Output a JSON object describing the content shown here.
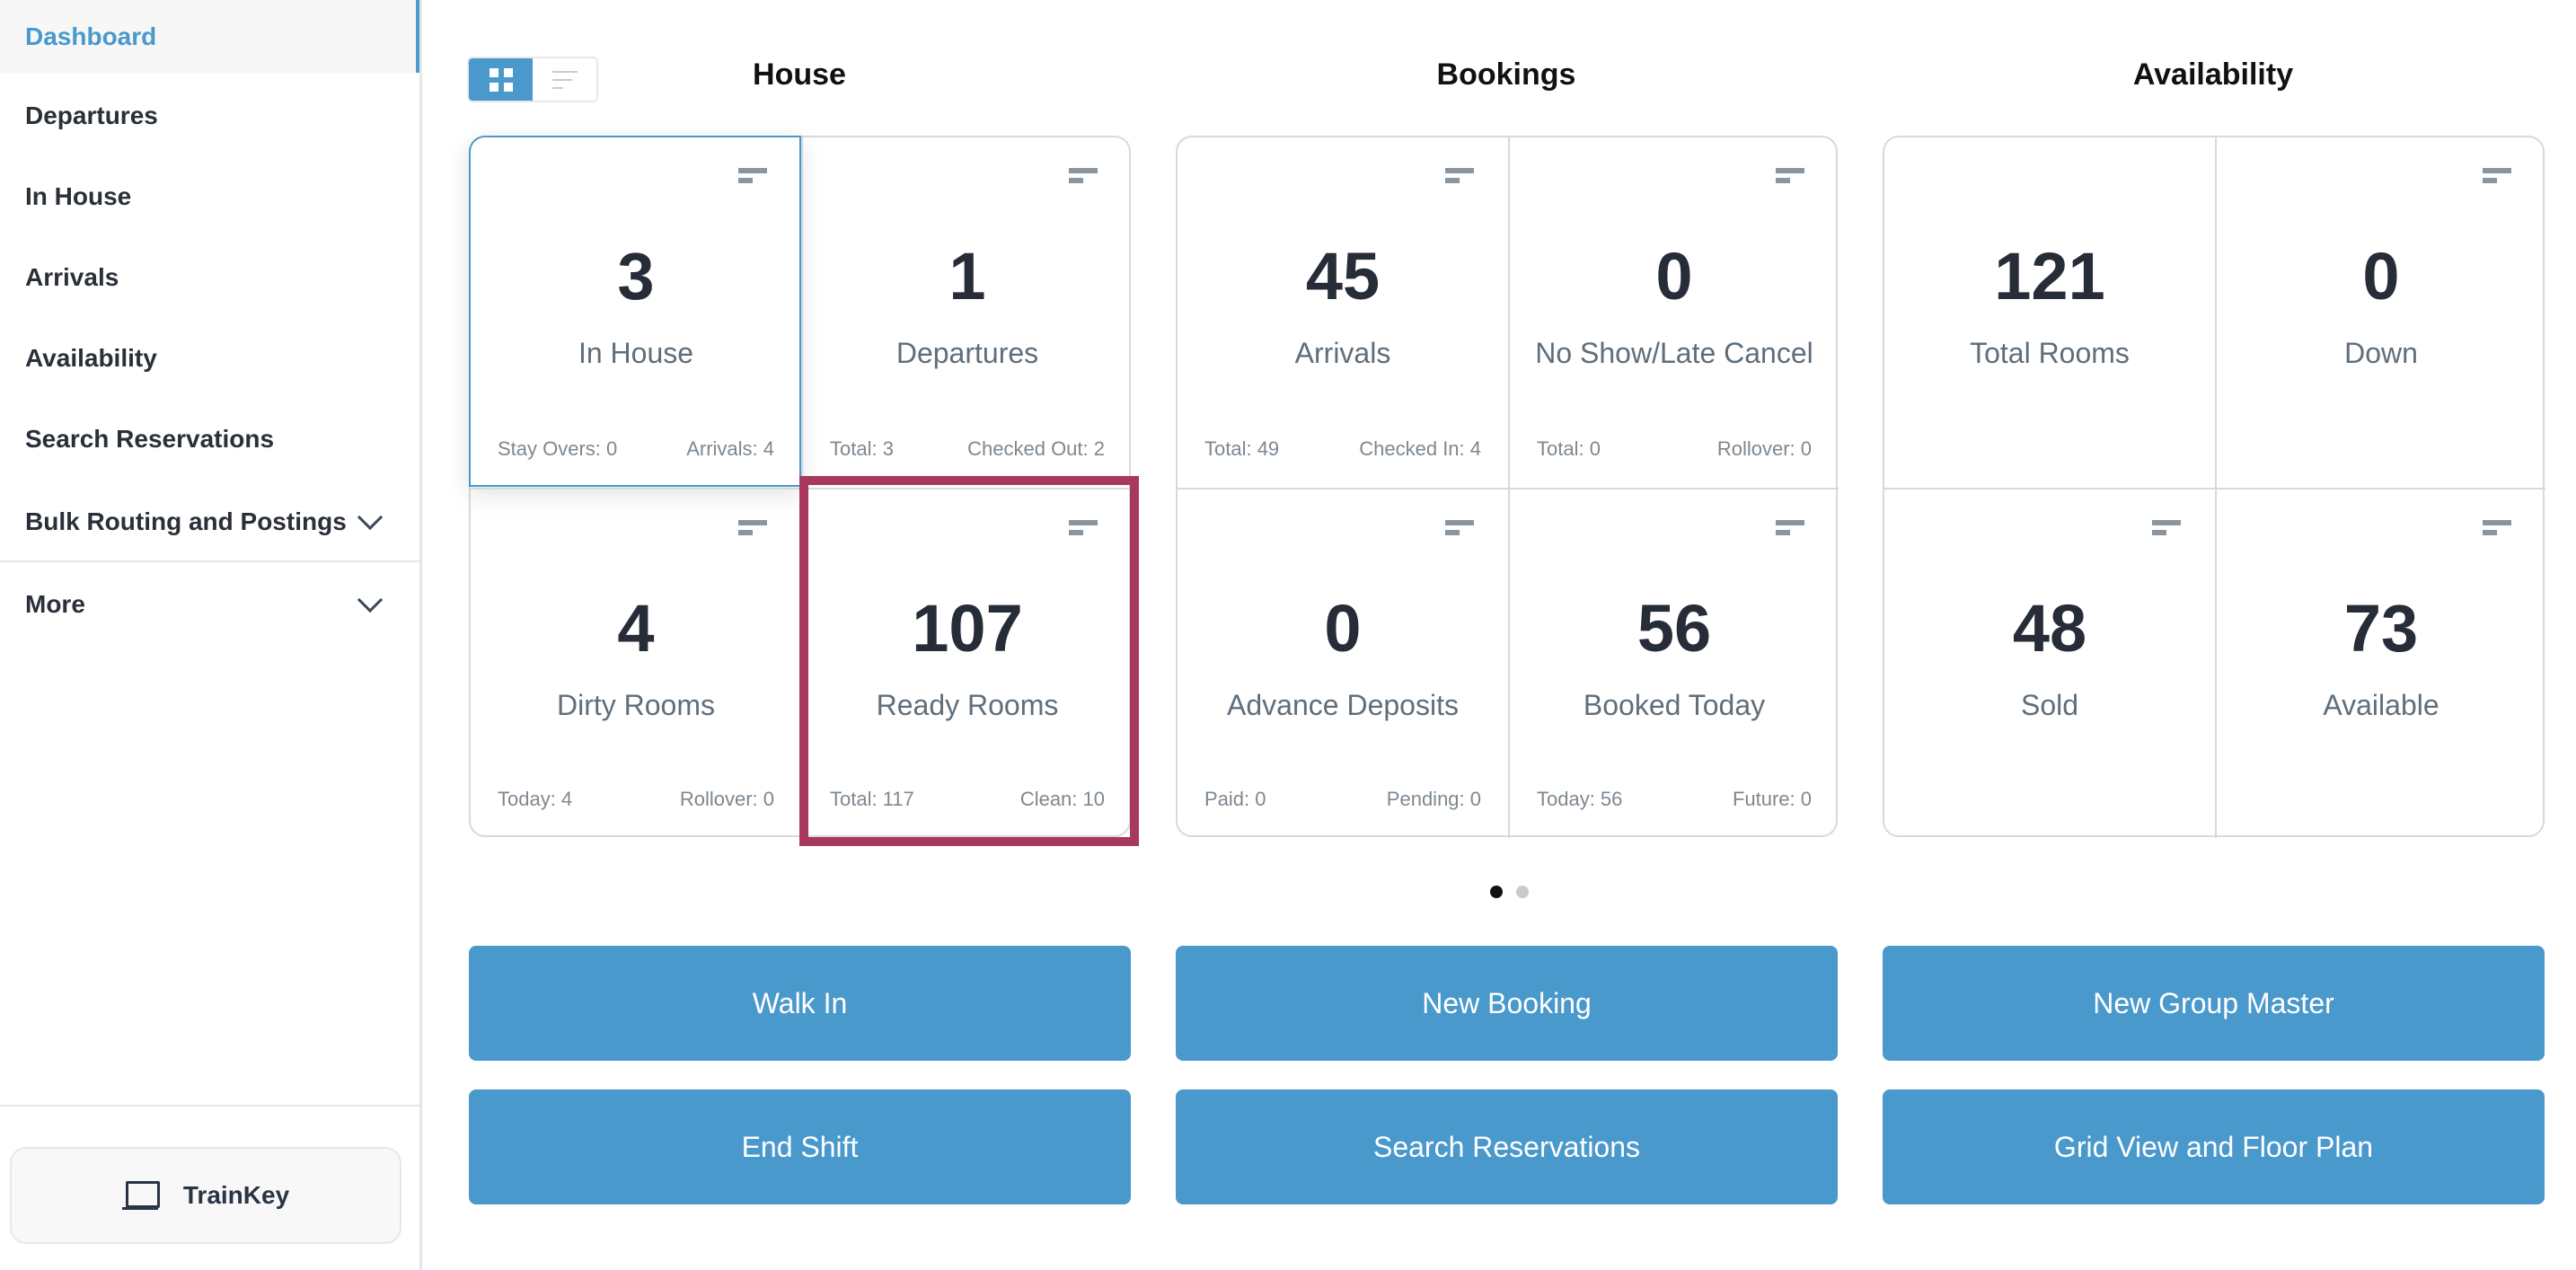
{
  "sidebar": {
    "items": [
      {
        "label": "Dashboard",
        "active": true
      },
      {
        "label": "Departures"
      },
      {
        "label": "In House"
      },
      {
        "label": "Arrivals"
      },
      {
        "label": "Availability"
      },
      {
        "label": "Search Reservations"
      },
      {
        "label": "Bulk Routing and Postings",
        "expandable": true
      },
      {
        "label": "More",
        "expandable": true
      }
    ],
    "trainkey_label": "TrainKey"
  },
  "view_toggle": {
    "selected": "grid"
  },
  "sections": [
    {
      "title": "House",
      "cards": [
        {
          "value": "3",
          "label": "In House",
          "left": "Stay Overs: 0",
          "right": "Arrivals: 4"
        },
        {
          "value": "1",
          "label": "Departures",
          "left": "Total: 3",
          "right": "Checked Out: 2"
        },
        {
          "value": "4",
          "label": "Dirty Rooms",
          "left": "Today: 4",
          "right": "Rollover: 0"
        },
        {
          "value": "107",
          "label": "Ready Rooms",
          "left": "Total: 117",
          "right": "Clean: 10"
        }
      ]
    },
    {
      "title": "Bookings",
      "cards": [
        {
          "value": "45",
          "label": "Arrivals",
          "left": "Total: 49",
          "right": "Checked In: 4"
        },
        {
          "value": "0",
          "label": "No Show/Late Cancel",
          "left": "Total: 0",
          "right": "Rollover: 0"
        },
        {
          "value": "0",
          "label": "Advance Deposits",
          "left": "Paid: 0",
          "right": "Pending: 0"
        },
        {
          "value": "56",
          "label": "Booked Today",
          "left": "Today: 56",
          "right": "Future: 0"
        }
      ]
    },
    {
      "title": "Availability",
      "cards": [
        {
          "value": "121",
          "label": "Total Rooms"
        },
        {
          "value": "0",
          "label": "Down"
        },
        {
          "value": "48",
          "label": "Sold"
        },
        {
          "value": "73",
          "label": "Available"
        }
      ]
    }
  ],
  "pagination": {
    "pages": 2,
    "current": 1
  },
  "buttons": [
    [
      "Walk In",
      "New Booking",
      "New Group Master"
    ],
    [
      "End Shift",
      "Search Reservations",
      "Grid View and Floor Plan"
    ]
  ],
  "colors": {
    "accent": "#4a99cc",
    "highlight": "#a8385c"
  }
}
